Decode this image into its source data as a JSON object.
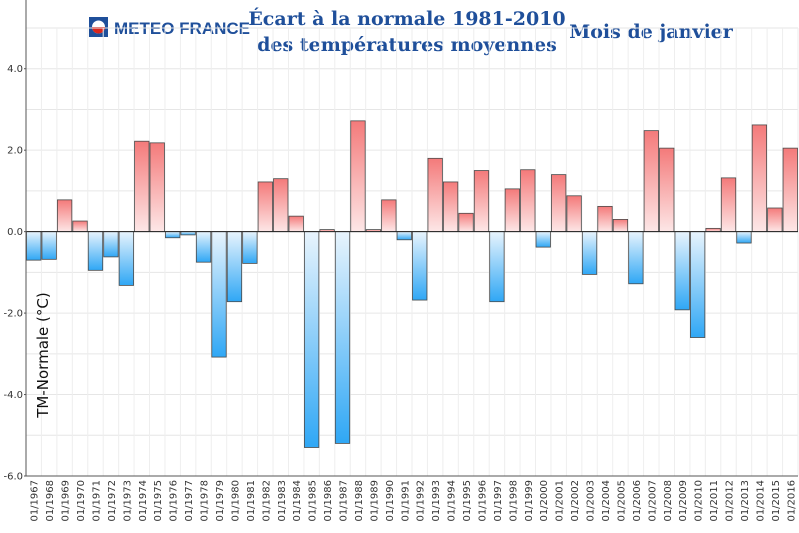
{
  "branding": {
    "logo_text": "METEO FRANCE"
  },
  "chart_data": {
    "type": "bar",
    "title_line1": "Écart à la normale 1981-2010",
    "title_line2": "des températures moyennes",
    "subtitle": "Mois de janvier",
    "ylabel": "TM-Normale (°C)",
    "xlabel": "",
    "ylim": [
      -6.0,
      5.0
    ],
    "yticks": [
      4.0,
      2.0,
      0.0,
      -2.0,
      -4.0,
      -6.0
    ],
    "ytick_labels": [
      "4.0",
      "2.0",
      "0.0",
      "-2.0",
      "-4.0",
      "-6.0"
    ],
    "grid": true,
    "positive_color": "#f47a7a",
    "negative_color": "#2fa7f5",
    "categories": [
      "01/1967",
      "01/1968",
      "01/1969",
      "01/1970",
      "01/1971",
      "01/1972",
      "01/1973",
      "01/1974",
      "01/1975",
      "01/1976",
      "01/1977",
      "01/1978",
      "01/1979",
      "01/1980",
      "01/1981",
      "01/1982",
      "01/1983",
      "01/1984",
      "01/1985",
      "01/1986",
      "01/1987",
      "01/1988",
      "01/1989",
      "01/1990",
      "01/1991",
      "01/1992",
      "01/1993",
      "01/1994",
      "01/1995",
      "01/1996",
      "01/1997",
      "01/1998",
      "01/1999",
      "01/2000",
      "01/2001",
      "01/2002",
      "01/2003",
      "01/2004",
      "01/2005",
      "01/2006",
      "01/2007",
      "01/2008",
      "01/2009",
      "01/2010",
      "01/2011",
      "01/2012",
      "01/2013",
      "01/2014",
      "01/2015",
      "01/2016"
    ],
    "values": [
      -0.7,
      -0.68,
      0.78,
      0.26,
      -0.95,
      -0.62,
      -1.32,
      2.22,
      2.18,
      -0.15,
      -0.08,
      -0.75,
      -3.08,
      -1.72,
      -0.78,
      1.22,
      1.3,
      0.38,
      -5.3,
      0.05,
      -5.2,
      2.72,
      0.05,
      0.78,
      -0.2,
      -1.68,
      1.8,
      1.22,
      0.45,
      1.5,
      -1.72,
      1.05,
      1.52,
      -0.38,
      1.4,
      0.88,
      -1.05,
      0.62,
      0.3,
      -1.28,
      2.48,
      2.05,
      -1.92,
      -2.6,
      0.08,
      1.32,
      -0.28,
      2.62,
      0.58,
      2.05
    ]
  }
}
